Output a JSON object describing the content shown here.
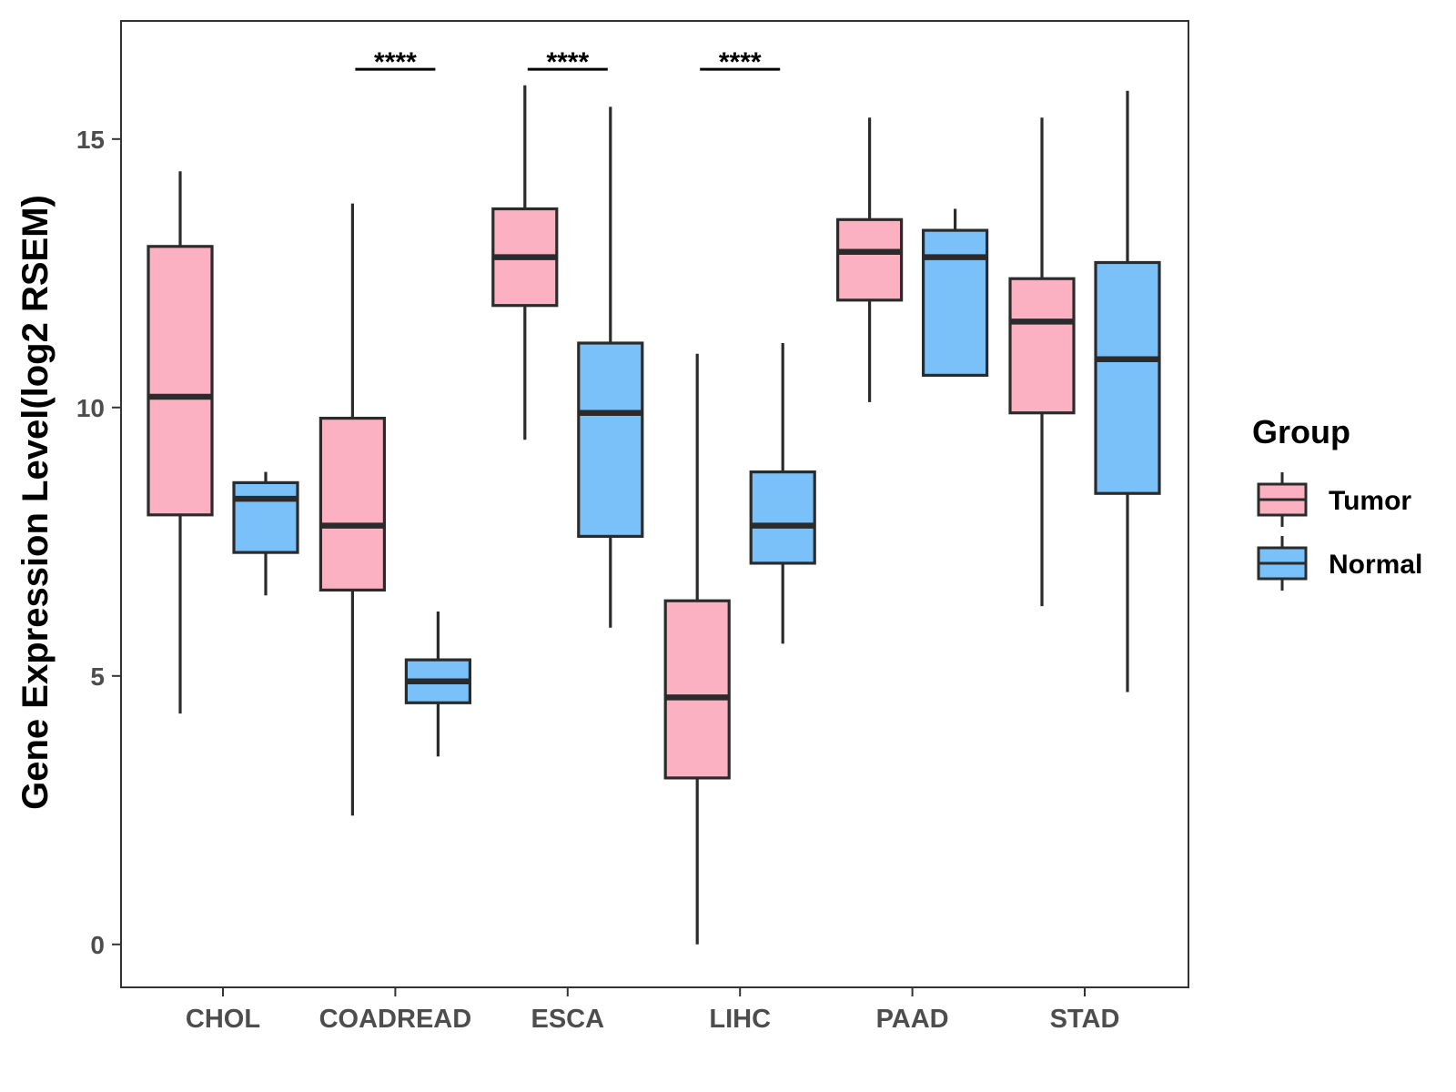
{
  "chart_data": {
    "type": "boxplot",
    "title": "",
    "xlabel": "",
    "ylabel": "Gene Expression Level(log2 RSEM)",
    "ylim": [
      -0.8,
      17.2
    ],
    "yticks": [
      0,
      5,
      10,
      15
    ],
    "grid": false,
    "categories": [
      "CHOL",
      "COADREAD",
      "ESCA",
      "LIHC",
      "PAAD",
      "STAD"
    ],
    "legend": {
      "title": "Group",
      "position": "right",
      "entries": [
        "Tumor",
        "Normal"
      ]
    },
    "colors": {
      "Tumor": "#FBB1C2",
      "Normal": "#79C1F8",
      "outline": "#2b2b2b"
    },
    "series": [
      {
        "name": "Tumor",
        "boxes": [
          {
            "category": "CHOL",
            "min": 4.3,
            "q1": 8.0,
            "median": 10.2,
            "q3": 13.0,
            "max": 14.4
          },
          {
            "category": "COADREAD",
            "min": 2.4,
            "q1": 6.6,
            "median": 7.8,
            "q3": 9.8,
            "max": 13.8
          },
          {
            "category": "ESCA",
            "min": 9.4,
            "q1": 11.9,
            "median": 12.8,
            "q3": 13.7,
            "max": 16.0
          },
          {
            "category": "LIHC",
            "min": 0.0,
            "q1": 3.1,
            "median": 4.6,
            "q3": 6.4,
            "max": 11.0
          },
          {
            "category": "PAAD",
            "min": 10.1,
            "q1": 12.0,
            "median": 12.9,
            "q3": 13.5,
            "max": 15.4
          },
          {
            "category": "STAD",
            "min": 6.3,
            "q1": 9.9,
            "median": 11.6,
            "q3": 12.4,
            "max": 15.4
          }
        ]
      },
      {
        "name": "Normal",
        "boxes": [
          {
            "category": "CHOL",
            "min": 6.5,
            "q1": 7.3,
            "median": 8.3,
            "q3": 8.6,
            "max": 8.8
          },
          {
            "category": "COADREAD",
            "min": 3.5,
            "q1": 4.5,
            "median": 4.9,
            "q3": 5.3,
            "max": 6.2
          },
          {
            "category": "ESCA",
            "min": 5.9,
            "q1": 7.6,
            "median": 9.9,
            "q3": 11.2,
            "max": 15.6
          },
          {
            "category": "LIHC",
            "min": 5.6,
            "q1": 7.1,
            "median": 7.8,
            "q3": 8.8,
            "max": 11.2
          },
          {
            "category": "PAAD",
            "min": 10.6,
            "q1": 10.6,
            "median": 12.8,
            "q3": 13.3,
            "max": 13.7
          },
          {
            "category": "STAD",
            "min": 4.7,
            "q1": 8.4,
            "median": 10.9,
            "q3": 12.7,
            "max": 15.9
          }
        ]
      }
    ],
    "annotations": [
      {
        "category": "COADREAD",
        "text": "****",
        "y": 16.3
      },
      {
        "category": "ESCA",
        "text": "****",
        "y": 16.3
      },
      {
        "category": "LIHC",
        "text": "****",
        "y": 16.3
      }
    ]
  }
}
